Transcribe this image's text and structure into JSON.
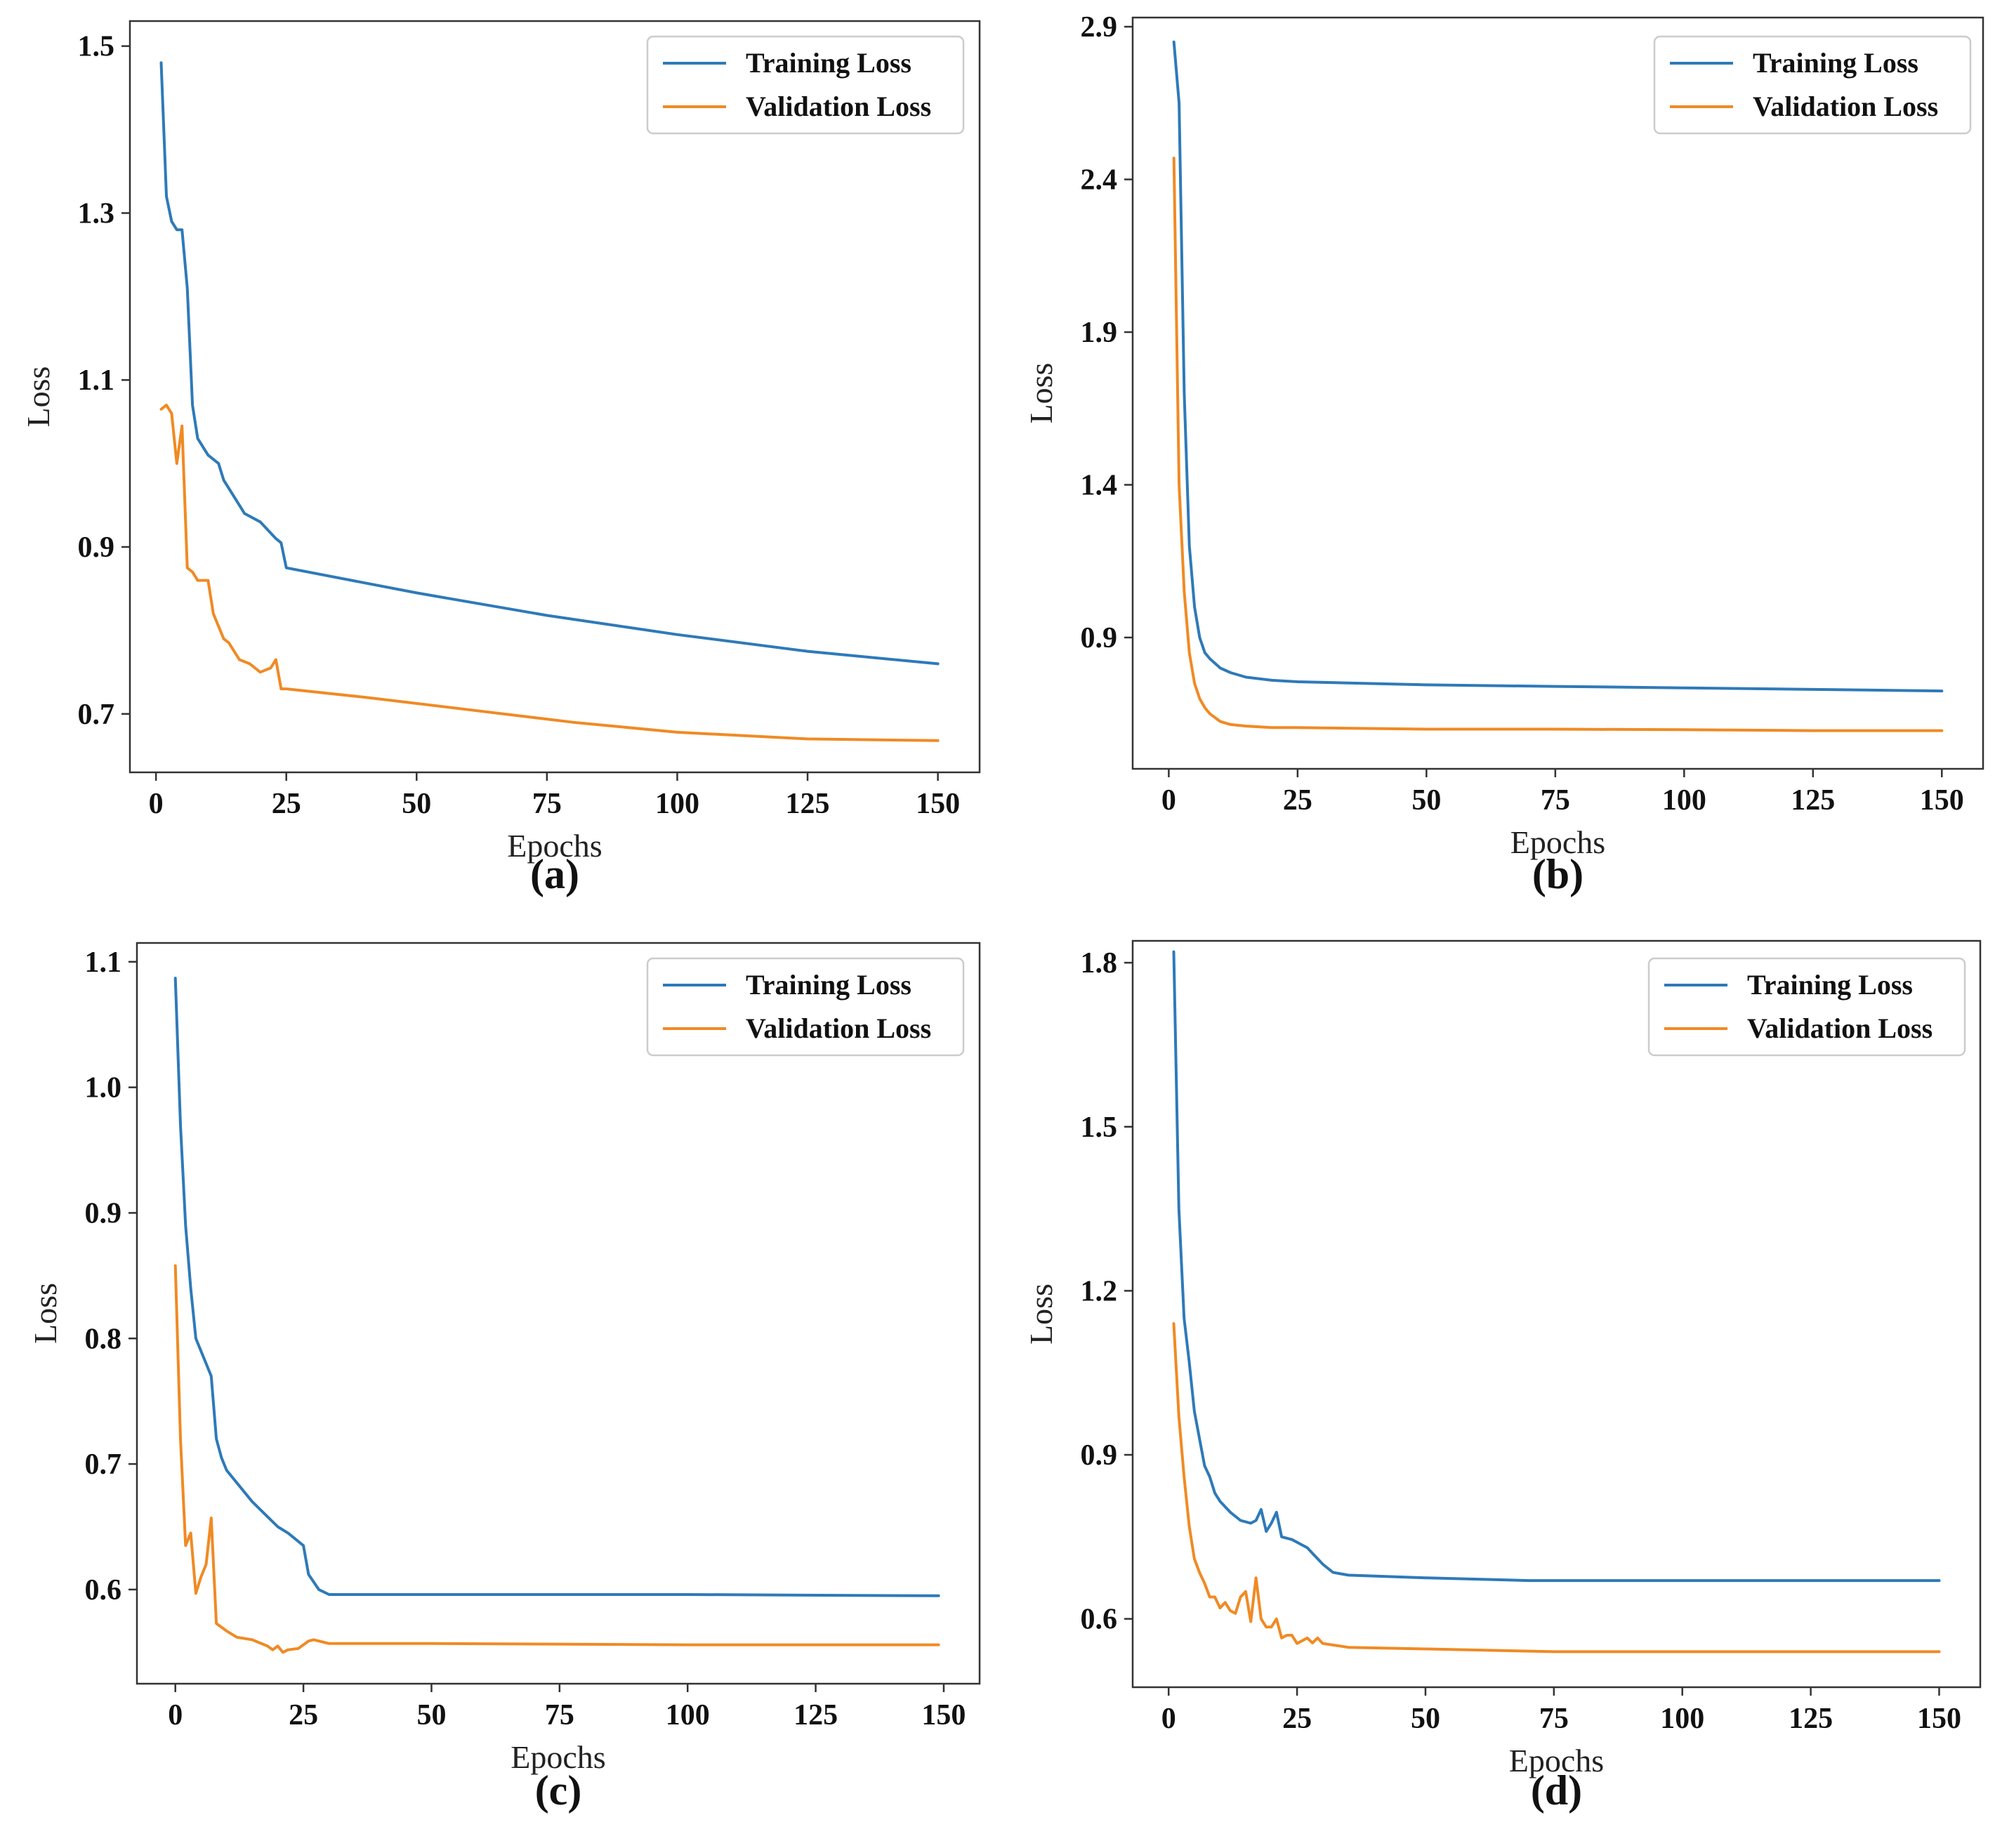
{
  "colors": {
    "training": "#2e7ab8",
    "validation": "#f08a24"
  },
  "chart_data": [
    {
      "type": "line",
      "panel_label": "(a)",
      "xlabel": "Epochs",
      "ylabel": "Loss",
      "xlim": [
        -5,
        158
      ],
      "ylim": [
        0.63,
        1.53
      ],
      "xticks": [
        0,
        25,
        50,
        75,
        100,
        125,
        150
      ],
      "xtick_labels": [
        "0",
        "25",
        "50",
        "75",
        "100",
        "125",
        "150"
      ],
      "yticks": [
        0.7,
        0.9,
        1.1,
        1.3,
        1.5
      ],
      "ytick_labels": [
        "0.7",
        "0.9",
        "1.1",
        "1.3",
        "1.5"
      ],
      "legend": "top-right",
      "series": [
        {
          "name": "Training Loss",
          "color_key": "training",
          "x": [
            1,
            2,
            3,
            4,
            5,
            6,
            7,
            8,
            10,
            12,
            13,
            15,
            17,
            20,
            23,
            24,
            25,
            50,
            75,
            100,
            125,
            150
          ],
          "y": [
            1.48,
            1.32,
            1.29,
            1.28,
            1.28,
            1.21,
            1.07,
            1.03,
            1.01,
            1.0,
            0.98,
            0.96,
            0.94,
            0.93,
            0.91,
            0.905,
            0.875,
            0.845,
            0.818,
            0.795,
            0.775,
            0.76
          ]
        },
        {
          "name": "Validation Loss",
          "color_key": "validation",
          "x": [
            1,
            2,
            3,
            4,
            5,
            6,
            7,
            8,
            10,
            11,
            13,
            14,
            16,
            18,
            20,
            22,
            23,
            24,
            25,
            40,
            60,
            80,
            100,
            125,
            150
          ],
          "y": [
            1.065,
            1.07,
            1.06,
            1.0,
            1.045,
            0.875,
            0.87,
            0.86,
            0.86,
            0.82,
            0.79,
            0.785,
            0.765,
            0.76,
            0.75,
            0.755,
            0.765,
            0.73,
            0.73,
            0.72,
            0.705,
            0.69,
            0.678,
            0.67,
            0.668
          ]
        }
      ]
    },
    {
      "type": "line",
      "panel_label": "(b)",
      "xlabel": "Epochs",
      "ylabel": "Loss",
      "xlim": [
        -7,
        158
      ],
      "ylim": [
        0.47,
        2.93
      ],
      "xticks": [
        0,
        25,
        50,
        75,
        100,
        125,
        150
      ],
      "xtick_labels": [
        "0",
        "25",
        "50",
        "75",
        "100",
        "125",
        "150"
      ],
      "yticks": [
        0.9,
        1.4,
        1.9,
        2.4,
        2.9
      ],
      "ytick_labels": [
        "0.9",
        "1.4",
        "1.9",
        "2.4",
        "2.9"
      ],
      "legend": "top-right",
      "series": [
        {
          "name": "Training Loss",
          "color_key": "training",
          "x": [
            1,
            2,
            3,
            4,
            5,
            6,
            7,
            8,
            10,
            12,
            15,
            20,
            25,
            50,
            75,
            100,
            125,
            150
          ],
          "y": [
            2.85,
            2.65,
            1.7,
            1.2,
            1.0,
            0.9,
            0.85,
            0.83,
            0.8,
            0.785,
            0.77,
            0.76,
            0.755,
            0.745,
            0.74,
            0.735,
            0.73,
            0.725
          ]
        },
        {
          "name": "Validation Loss",
          "color_key": "validation",
          "x": [
            1,
            2,
            3,
            4,
            5,
            6,
            7,
            8,
            10,
            12,
            15,
            20,
            25,
            50,
            75,
            100,
            125,
            150
          ],
          "y": [
            2.47,
            1.4,
            1.05,
            0.85,
            0.75,
            0.7,
            0.67,
            0.65,
            0.625,
            0.615,
            0.61,
            0.605,
            0.605,
            0.6,
            0.6,
            0.598,
            0.595,
            0.595
          ]
        }
      ]
    },
    {
      "type": "line",
      "panel_label": "(c)",
      "xlabel": "Epochs",
      "ylabel": "Loss",
      "xlim": [
        -7.5,
        157
      ],
      "ylim": [
        0.525,
        1.115
      ],
      "xticks": [
        0,
        25,
        50,
        75,
        100,
        125,
        150
      ],
      "xtick_labels": [
        "0",
        "25",
        "50",
        "75",
        "100",
        "125",
        "150"
      ],
      "yticks": [
        0.6,
        0.7,
        0.8,
        0.9,
        1.0,
        1.1
      ],
      "ytick_labels": [
        "0.6",
        "0.7",
        "0.8",
        "0.9",
        "1.0",
        "1.1"
      ],
      "legend": "top-right",
      "series": [
        {
          "name": "Training Loss",
          "color_key": "training",
          "x": [
            0,
            1,
            2,
            3,
            4,
            5,
            6,
            7,
            8,
            9,
            10,
            15,
            20,
            22,
            25,
            26,
            28,
            30,
            50,
            100,
            149
          ],
          "y": [
            1.087,
            0.97,
            0.89,
            0.84,
            0.8,
            0.79,
            0.78,
            0.77,
            0.72,
            0.705,
            0.695,
            0.67,
            0.65,
            0.645,
            0.635,
            0.612,
            0.6,
            0.596,
            0.596,
            0.596,
            0.595
          ]
        },
        {
          "name": "Validation Loss",
          "color_key": "validation",
          "x": [
            0,
            1,
            2,
            3,
            4,
            5,
            6,
            7,
            8,
            10,
            12,
            15,
            18,
            19,
            20,
            21,
            22,
            24,
            26,
            27,
            29,
            30,
            50,
            100,
            149
          ],
          "y": [
            0.858,
            0.72,
            0.635,
            0.645,
            0.597,
            0.61,
            0.62,
            0.657,
            0.573,
            0.567,
            0.562,
            0.56,
            0.555,
            0.552,
            0.555,
            0.55,
            0.552,
            0.553,
            0.559,
            0.56,
            0.558,
            0.557,
            0.557,
            0.556,
            0.556
          ]
        }
      ]
    },
    {
      "type": "line",
      "panel_label": "(d)",
      "xlabel": "Epochs",
      "ylabel": "Loss",
      "xlim": [
        -7,
        158
      ],
      "ylim": [
        0.475,
        1.84
      ],
      "xticks": [
        0,
        25,
        50,
        75,
        100,
        125,
        150
      ],
      "xtick_labels": [
        "0",
        "25",
        "50",
        "75",
        "100",
        "125",
        "150"
      ],
      "yticks": [
        0.6,
        0.9,
        1.2,
        1.5,
        1.8
      ],
      "ytick_labels": [
        "0.6",
        "0.9",
        "1.2",
        "1.5",
        "1.8"
      ],
      "legend": "top-right",
      "series": [
        {
          "name": "Training Loss",
          "color_key": "training",
          "x": [
            1,
            2,
            3,
            4,
            5,
            6,
            7,
            8,
            9,
            10,
            12,
            14,
            16,
            17,
            18,
            19,
            20,
            21,
            22,
            24,
            26,
            27,
            28,
            30,
            32,
            35,
            50,
            70,
            100,
            150
          ],
          "y": [
            1.82,
            1.35,
            1.15,
            1.07,
            0.98,
            0.93,
            0.88,
            0.86,
            0.83,
            0.815,
            0.795,
            0.78,
            0.775,
            0.78,
            0.8,
            0.76,
            0.775,
            0.795,
            0.75,
            0.745,
            0.735,
            0.73,
            0.72,
            0.7,
            0.685,
            0.68,
            0.675,
            0.67,
            0.67,
            0.67
          ]
        },
        {
          "name": "Validation Loss",
          "color_key": "validation",
          "x": [
            1,
            2,
            3,
            4,
            5,
            6,
            7,
            8,
            9,
            10,
            11,
            12,
            13,
            14,
            15,
            16,
            17,
            18,
            19,
            20,
            21,
            22,
            23,
            24,
            25,
            26,
            27,
            28,
            29,
            30,
            35,
            50,
            75,
            100,
            150
          ],
          "y": [
            1.14,
            0.97,
            0.86,
            0.77,
            0.71,
            0.685,
            0.665,
            0.64,
            0.64,
            0.62,
            0.63,
            0.615,
            0.61,
            0.64,
            0.65,
            0.595,
            0.675,
            0.6,
            0.585,
            0.585,
            0.6,
            0.565,
            0.57,
            0.57,
            0.555,
            0.56,
            0.565,
            0.556,
            0.565,
            0.555,
            0.548,
            0.545,
            0.54,
            0.54,
            0.54
          ]
        }
      ]
    }
  ]
}
